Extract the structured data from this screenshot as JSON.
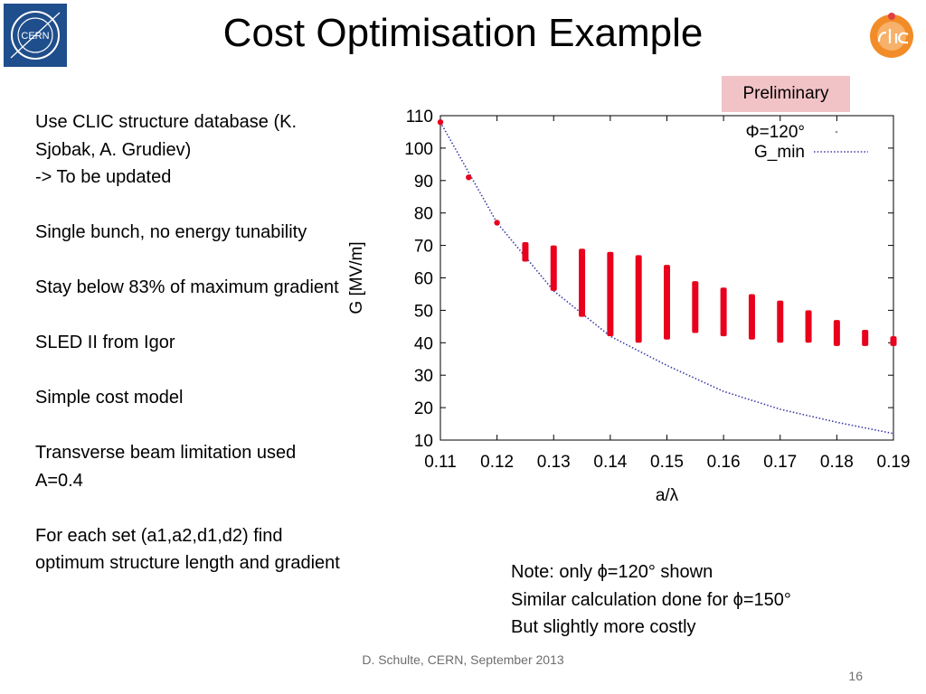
{
  "slide": {
    "title": "Cost Optimisation Example",
    "badge": "Preliminary",
    "cern_logo_text": "CERN",
    "bullets": [
      "Use CLIC structure database (K. Sjobak, A. Grudiev)",
      "-> To be updated",
      "Single bunch, no energy tunability",
      "Stay below 83% of maximum gradient",
      "SLED II from Igor",
      "Simple cost model",
      "Transverse beam limitation used A=0.4",
      "For each set (a1,a2,d1,d2) find optimum structure length and gradient"
    ],
    "note_lines": [
      "Note: only ϕ=120° shown",
      "Similar calculation done for ϕ=150°",
      "But slightly more costly"
    ],
    "footer": "D. Schulte, CERN, September 2013",
    "page_number": "16",
    "colors": {
      "badge_bg": "#f2c3c6",
      "cern_blue": "#1f4e8c",
      "clic_orange": "#f28c28"
    }
  },
  "chart_data": {
    "type": "scatter",
    "xlabel": "a/λ",
    "ylabel": "G [MV/m]",
    "xlim": [
      0.11,
      0.19
    ],
    "ylim": [
      10,
      110
    ],
    "xticks": [
      "0.11",
      "0.12",
      "0.13",
      "0.14",
      "0.15",
      "0.16",
      "0.17",
      "0.18",
      "0.19"
    ],
    "yticks": [
      "10",
      "20",
      "30",
      "40",
      "50",
      "60",
      "70",
      "80",
      "90",
      "100",
      "110"
    ],
    "legend": {
      "position": "top-right",
      "entries": [
        "Φ=120°",
        "G_min"
      ]
    },
    "series": [
      {
        "name": "Φ=120°",
        "color": "#e8001c",
        "points": [
          [
            0.11,
            108
          ],
          [
            0.115,
            91
          ],
          [
            0.12,
            77
          ]
        ],
        "ranges": [
          {
            "x": 0.125,
            "ymin": 65,
            "ymax": 71
          },
          {
            "x": 0.13,
            "ymin": 56,
            "ymax": 70
          },
          {
            "x": 0.135,
            "ymin": 48,
            "ymax": 69
          },
          {
            "x": 0.14,
            "ymin": 42,
            "ymax": 68
          },
          {
            "x": 0.145,
            "ymin": 40,
            "ymax": 67
          },
          {
            "x": 0.15,
            "ymin": 41,
            "ymax": 64
          },
          {
            "x": 0.155,
            "ymin": 43,
            "ymax": 59
          },
          {
            "x": 0.16,
            "ymin": 42,
            "ymax": 57
          },
          {
            "x": 0.165,
            "ymin": 41,
            "ymax": 55
          },
          {
            "x": 0.17,
            "ymin": 40,
            "ymax": 53
          },
          {
            "x": 0.175,
            "ymin": 40,
            "ymax": 50
          },
          {
            "x": 0.18,
            "ymin": 39,
            "ymax": 47
          },
          {
            "x": 0.185,
            "ymin": 39,
            "ymax": 44
          },
          {
            "x": 0.19,
            "ymin": 39,
            "ymax": 42
          }
        ]
      },
      {
        "name": "G_min",
        "color": "#3a3aa8",
        "line": [
          [
            0.11,
            108
          ],
          [
            0.12,
            77
          ],
          [
            0.13,
            56
          ],
          [
            0.14,
            42
          ],
          [
            0.15,
            33
          ],
          [
            0.16,
            25
          ],
          [
            0.17,
            19.5
          ],
          [
            0.18,
            15.5
          ],
          [
            0.19,
            12
          ]
        ]
      }
    ]
  }
}
